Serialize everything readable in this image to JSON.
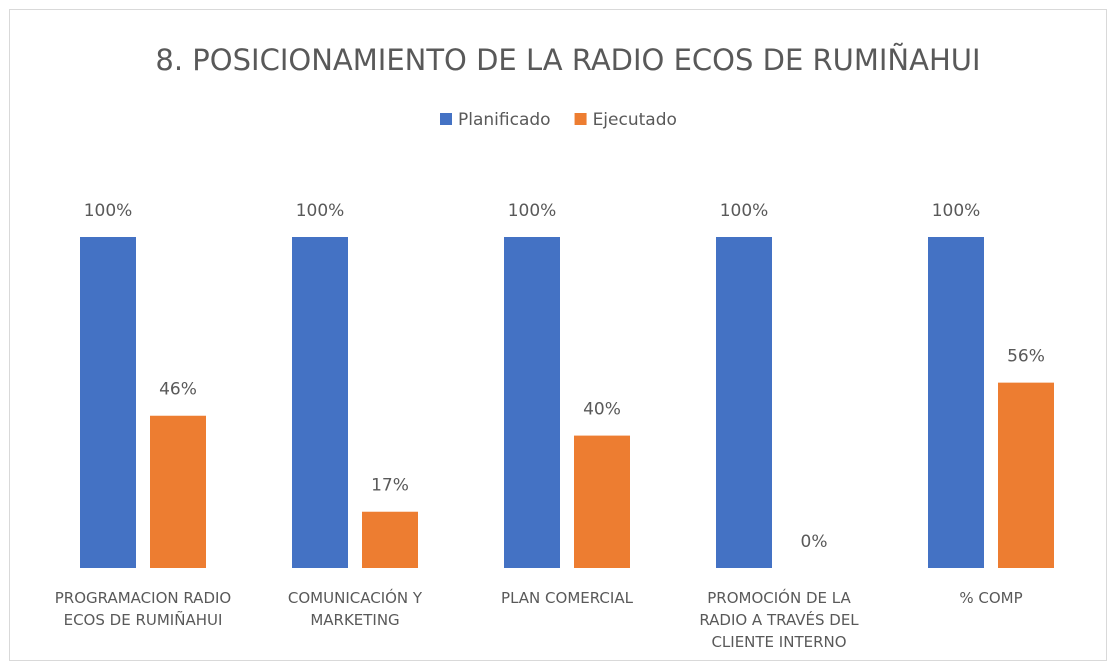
{
  "chart_data": {
    "type": "bar",
    "title": "8. POSICIONAMIENTO DE LA RADIO ECOS DE RUMIÑAHUI",
    "categories": [
      "PROGRAMACION RADIO ECOS DE RUMIÑAHUI",
      "COMUNICACIÓN Y MARKETING",
      "PLAN COMERCIAL",
      "PROMOCIÓN DE LA RADIO A TRAVÉS DEL CLIENTE INTERNO",
      "% COMP"
    ],
    "series": [
      {
        "name": "Planificado",
        "color": "#4472c4",
        "values": [
          100,
          100,
          100,
          100,
          100
        ],
        "value_labels": [
          "100%",
          "100%",
          "100%",
          "100%",
          "100%"
        ]
      },
      {
        "name": "Ejecutado",
        "color": "#ed7d31",
        "values": [
          46,
          17,
          40,
          0,
          56
        ],
        "value_labels": [
          "46%",
          "17%",
          "40%",
          "0%",
          "56%"
        ]
      }
    ],
    "ylim": [
      0,
      100
    ],
    "legend": "top"
  }
}
